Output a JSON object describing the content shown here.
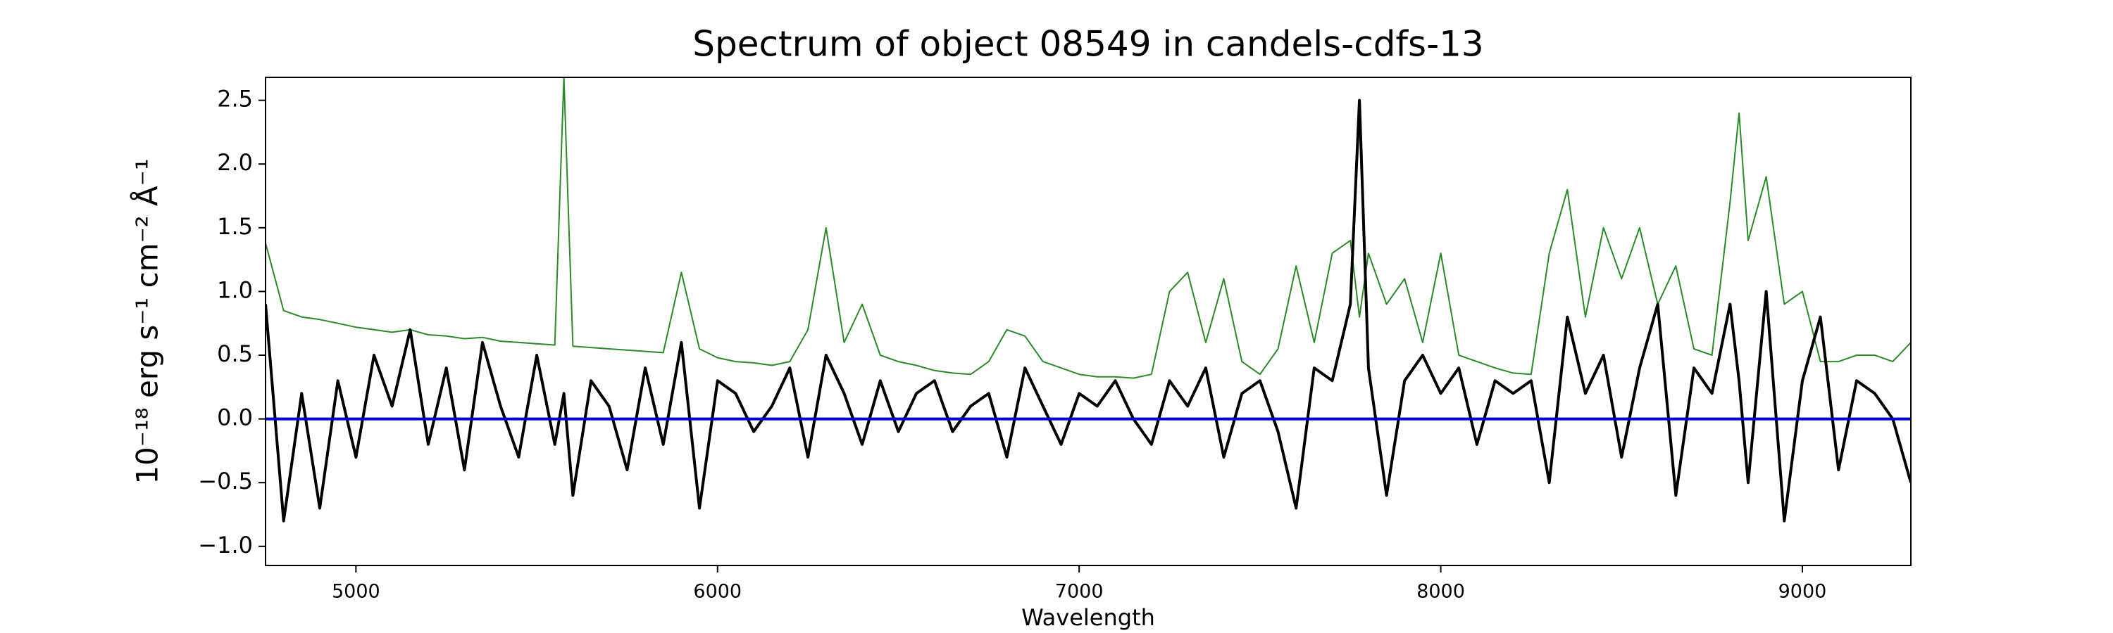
{
  "chart_data": {
    "type": "line",
    "title": "Spectrum of object 08549 in candels-cdfs-13",
    "xlabel": "Wavelength",
    "ylabel": "10⁻¹⁸ erg s⁻¹ cm⁻² Å⁻¹",
    "x": [
      4750,
      4800,
      4850,
      4900,
      4950,
      5000,
      5050,
      5100,
      5150,
      5200,
      5250,
      5300,
      5350,
      5400,
      5450,
      5500,
      5550,
      5575,
      5600,
      5650,
      5700,
      5750,
      5800,
      5850,
      5900,
      5950,
      6000,
      6050,
      6100,
      6150,
      6200,
      6250,
      6300,
      6350,
      6400,
      6450,
      6500,
      6550,
      6600,
      6650,
      6700,
      6750,
      6800,
      6850,
      6900,
      6950,
      7000,
      7050,
      7100,
      7150,
      7200,
      7250,
      7300,
      7350,
      7400,
      7450,
      7500,
      7550,
      7600,
      7650,
      7700,
      7750,
      7775,
      7800,
      7850,
      7900,
      7950,
      8000,
      8050,
      8100,
      8150,
      8200,
      8250,
      8300,
      8350,
      8400,
      8450,
      8500,
      8550,
      8600,
      8650,
      8700,
      8750,
      8800,
      8825,
      8850,
      8900,
      8950,
      9000,
      9050,
      9100,
      9150,
      9200,
      9250,
      9300
    ],
    "series": [
      {
        "color": "#2a8a2a",
        "width": 1,
        "values": [
          1.38,
          0.85,
          0.8,
          0.78,
          0.75,
          0.72,
          0.7,
          0.68,
          0.7,
          0.66,
          0.65,
          0.63,
          0.64,
          0.61,
          0.6,
          0.59,
          0.58,
          2.68,
          0.57,
          0.56,
          0.55,
          0.54,
          0.53,
          0.52,
          1.15,
          0.55,
          0.48,
          0.45,
          0.44,
          0.42,
          0.45,
          0.7,
          1.5,
          0.6,
          0.9,
          0.5,
          0.45,
          0.42,
          0.38,
          0.36,
          0.35,
          0.45,
          0.7,
          0.65,
          0.45,
          0.4,
          0.35,
          0.33,
          0.33,
          0.32,
          0.35,
          1.0,
          1.15,
          0.6,
          1.1,
          0.45,
          0.35,
          0.55,
          1.2,
          0.6,
          1.3,
          1.4,
          0.8,
          1.3,
          0.9,
          1.1,
          0.6,
          1.3,
          0.5,
          0.45,
          0.4,
          0.36,
          0.35,
          1.3,
          1.8,
          0.8,
          1.5,
          1.1,
          1.5,
          0.9,
          1.2,
          0.55,
          0.5,
          1.7,
          2.4,
          1.4,
          1.9,
          0.9,
          1.0,
          0.45,
          0.45,
          0.5,
          0.5,
          0.45,
          0.6
        ]
      },
      {
        "color": "#000000",
        "width": 2,
        "values": [
          0.9,
          -0.8,
          0.2,
          -0.7,
          0.3,
          -0.3,
          0.5,
          0.1,
          0.7,
          -0.2,
          0.4,
          -0.4,
          0.6,
          0.1,
          -0.3,
          0.5,
          -0.2,
          0.2,
          -0.6,
          0.3,
          0.1,
          -0.4,
          0.4,
          -0.2,
          0.6,
          -0.7,
          0.3,
          0.2,
          -0.1,
          0.1,
          0.4,
          -0.3,
          0.5,
          0.2,
          -0.2,
          0.3,
          -0.1,
          0.2,
          0.3,
          -0.1,
          0.1,
          0.2,
          -0.3,
          0.4,
          0.1,
          -0.2,
          0.2,
          0.1,
          0.3,
          0.0,
          -0.2,
          0.3,
          0.1,
          0.4,
          -0.3,
          0.2,
          0.3,
          -0.1,
          -0.7,
          0.4,
          0.3,
          0.9,
          2.5,
          0.4,
          -0.6,
          0.3,
          0.5,
          0.2,
          0.4,
          -0.2,
          0.3,
          0.2,
          0.3,
          -0.5,
          0.8,
          0.2,
          0.5,
          -0.3,
          0.4,
          0.9,
          -0.6,
          0.4,
          0.2,
          0.9,
          0.3,
          -0.5,
          1.0,
          -0.8,
          0.3,
          0.8,
          -0.4,
          0.3,
          0.2,
          0.0,
          -0.5
        ]
      }
    ],
    "hline": {
      "value": 0,
      "color": "#0000cc"
    },
    "xlim": [
      4750,
      9300
    ],
    "ylim": [
      -1.15,
      2.68
    ],
    "xticks": [
      5000,
      6000,
      7000,
      8000,
      9000
    ],
    "yticks": [
      {
        "value": -1.0,
        "label": "−1.0"
      },
      {
        "value": -0.5,
        "label": "−0.5"
      },
      {
        "value": 0.0,
        "label": "0.0"
      },
      0.5,
      {
        "value": 1.0,
        "label": "1.0"
      },
      1.5,
      {
        "value": 2.0,
        "label": "2.0"
      },
      2.5
    ]
  }
}
